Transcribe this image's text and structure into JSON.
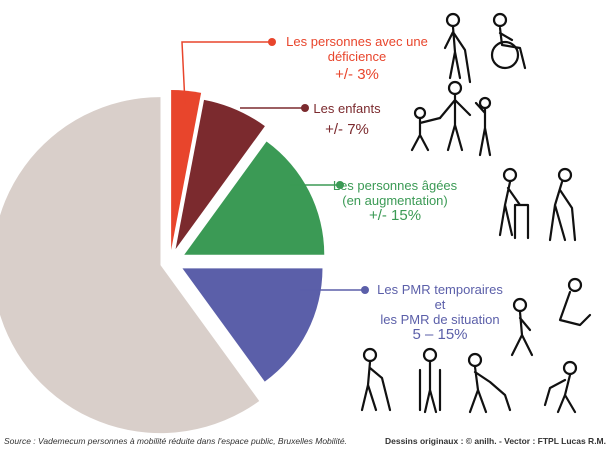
{
  "chart_data": {
    "type": "pie",
    "categories": [
      "Les personnes avec une\ndéficience",
      "Les enfants",
      "Les personnes âgées\n(en augmentation)",
      "Les PMR temporaires\net\nles PMR de situation",
      null
    ],
    "values": [
      3,
      7,
      15,
      15,
      60
    ],
    "value_labels": [
      "+/- 3%",
      "+/- 7%",
      "+/- 15%",
      "5 – 15%",
      null
    ],
    "colors": [
      "#e8452c",
      "#7b2a2e",
      "#3b9a55",
      "#5b5fa9",
      "#d9cfca"
    ]
  },
  "footer": {
    "source": "Source : Vademecum personnes à mobilité réduite dans l'espace public, Bruxelles Mobilité.",
    "credits": "Dessins originaux : © anilh. - Vector : FTPL Lucas R.M."
  }
}
